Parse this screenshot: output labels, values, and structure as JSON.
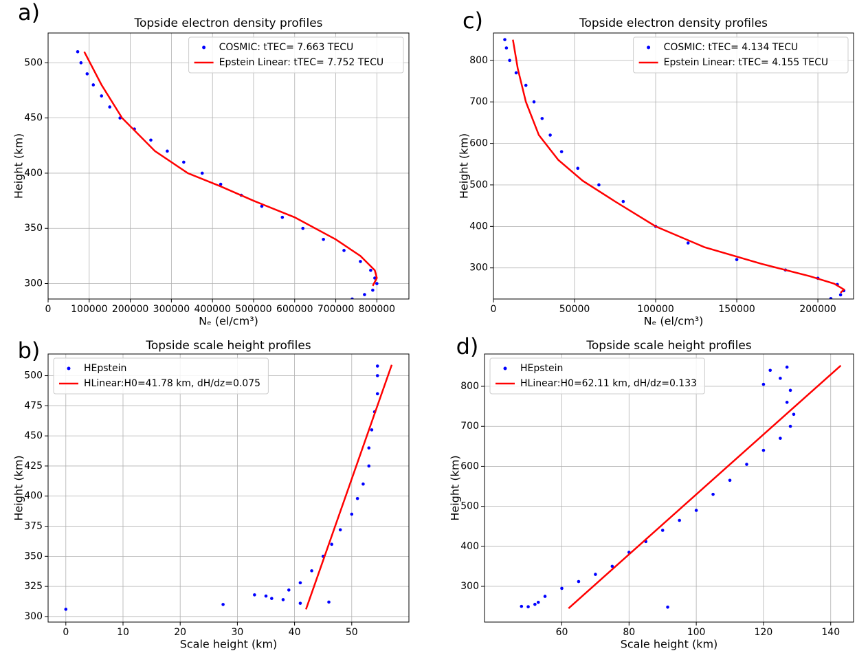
{
  "chart_data": [
    {
      "type": "scatter",
      "label": "a)",
      "title": "Topside electron density profiles",
      "xlabel": "Nₑ (el/cm³)",
      "ylabel": "Height (km)",
      "xlim": [
        0,
        878000
      ],
      "ylim": [
        286,
        527
      ],
      "xticks": [
        0,
        100000,
        200000,
        300000,
        400000,
        500000,
        600000,
        700000,
        800000
      ],
      "yticks": [
        300,
        350,
        400,
        450,
        500
      ],
      "grid": true,
      "legend": "upper right",
      "series": [
        {
          "name": "COSMIC: tTEC= 7.663 TECU",
          "color": "#0000ff",
          "type": "scatter",
          "x": [
            72000,
            80000,
            95000,
            110000,
            130000,
            150000,
            175000,
            210000,
            250000,
            290000,
            330000,
            375000,
            420000,
            470000,
            520000,
            570000,
            620000,
            670000,
            720000,
            760000,
            785000,
            795000,
            800000,
            790000,
            770000,
            740000
          ],
          "y": [
            510,
            500,
            490,
            480,
            470,
            460,
            450,
            440,
            430,
            420,
            410,
            400,
            390,
            380,
            370,
            360,
            350,
            340,
            330,
            320,
            312,
            305,
            300,
            294,
            290,
            286
          ]
        },
        {
          "name": "Epstein Linear: tTEC= 7.752 TECU",
          "color": "#ff0000",
          "type": "line",
          "x": [
            88000,
            130000,
            180000,
            260000,
            340000,
            420000,
            500000,
            600000,
            700000,
            760000,
            795000,
            800000,
            790000
          ],
          "y": [
            510,
            480,
            450,
            420,
            400,
            388,
            375,
            360,
            340,
            325,
            312,
            305,
            298
          ]
        }
      ]
    },
    {
      "type": "scatter",
      "label": "b)",
      "title": "Topside scale height profiles",
      "xlabel": "Scale height (km)",
      "ylabel": "Height (km)",
      "xlim": [
        -3.1,
        60
      ],
      "ylim": [
        295.4,
        518
      ],
      "xticks": [
        0,
        10,
        20,
        30,
        40,
        50
      ],
      "yticks": [
        300,
        325,
        350,
        375,
        400,
        425,
        450,
        475,
        500
      ],
      "grid": true,
      "legend": "upper left",
      "series": [
        {
          "name": "HEpstein",
          "color": "#0000ff",
          "type": "scatter",
          "x": [
            0,
            27.5,
            33,
            35,
            36,
            38,
            39,
            41,
            41,
            43,
            45,
            46,
            46.5,
            48,
            50,
            51,
            52,
            53,
            53,
            53.5,
            54,
            54.5,
            54.5,
            54.5
          ],
          "y": [
            306,
            310,
            318,
            317,
            315,
            314,
            322,
            311,
            328,
            338,
            350,
            312,
            360,
            372,
            385,
            398,
            410,
            425,
            440,
            455,
            470,
            485,
            500,
            508
          ]
        },
        {
          "name": "HLinear:H0=41.78 km, dH/dz=0.075",
          "color": "#ff0000",
          "type": "line",
          "x": [
            42,
            57
          ],
          "y": [
            306,
            509
          ]
        }
      ]
    },
    {
      "type": "scatter",
      "label": "c)",
      "title": "Topside electron density profiles",
      "xlabel": "Nₑ (el/cm³)",
      "ylabel": "Height (km)",
      "xlim": [
        0,
        222000
      ],
      "ylim": [
        225,
        866
      ],
      "xticks": [
        0,
        50000,
        100000,
        150000,
        200000
      ],
      "yticks": [
        300,
        400,
        500,
        600,
        700,
        800
      ],
      "grid": true,
      "legend": "upper right",
      "series": [
        {
          "name": "COSMIC: tTEC= 4.134 TECU",
          "color": "#0000ff",
          "type": "scatter",
          "x": [
            7000,
            8000,
            10000,
            14000,
            20000,
            25000,
            30000,
            35000,
            42000,
            52000,
            65000,
            80000,
            100000,
            120000,
            150000,
            180000,
            200000,
            212000,
            216000,
            214000,
            208000
          ],
          "y": [
            850,
            830,
            800,
            770,
            740,
            700,
            660,
            620,
            580,
            540,
            500,
            460,
            400,
            360,
            320,
            295,
            275,
            260,
            245,
            235,
            226
          ]
        },
        {
          "name": "Epstein Linear: tTEC= 4.155 TECU",
          "color": "#ff0000",
          "type": "line",
          "x": [
            12000,
            15000,
            20000,
            28000,
            40000,
            55000,
            75000,
            100000,
            130000,
            165000,
            195000,
            210000,
            216000,
            214000
          ],
          "y": [
            850,
            780,
            700,
            620,
            560,
            510,
            460,
            400,
            350,
            310,
            280,
            262,
            248,
            240
          ]
        }
      ]
    },
    {
      "type": "scatter",
      "label": "d)",
      "title": "Topside scale height profiles",
      "xlabel": "Scale height (km)",
      "ylabel": "Height (km)",
      "xlim": [
        37,
        146.8
      ],
      "ylim": [
        210.7,
        880.8
      ],
      "xticks": [
        60,
        80,
        100,
        120,
        140
      ],
      "yticks": [
        300,
        400,
        500,
        600,
        700,
        800
      ],
      "grid": true,
      "legend": "upper left",
      "series": [
        {
          "name": "HEpstein",
          "color": "#0000ff",
          "type": "scatter",
          "x": [
            48,
            50,
            52,
            53,
            55,
            60,
            65,
            70,
            75,
            80,
            85,
            90,
            95,
            100,
            105,
            110,
            115,
            120,
            125,
            128,
            129,
            127,
            128,
            125,
            122,
            120,
            127,
            91.5
          ],
          "y": [
            250,
            249,
            255,
            260,
            275,
            295,
            312,
            330,
            350,
            385,
            412,
            440,
            465,
            490,
            530,
            565,
            605,
            640,
            670,
            700,
            730,
            760,
            790,
            820,
            840,
            805,
            848,
            248
          ]
        },
        {
          "name": "HLinear:H0=62.11 km, dH/dz=0.133",
          "color": "#ff0000",
          "type": "line",
          "x": [
            62,
            143
          ],
          "y": [
            245,
            852
          ]
        }
      ]
    }
  ]
}
